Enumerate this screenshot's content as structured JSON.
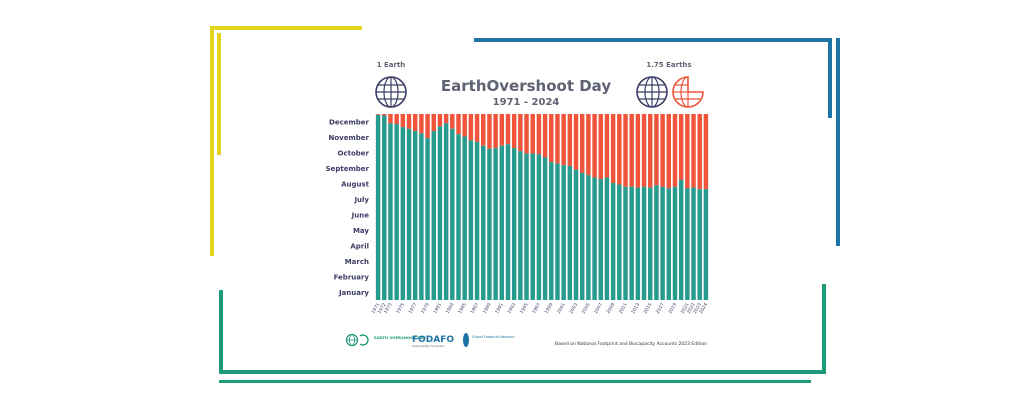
{
  "colors": {
    "accent_yellow": "#e3d41b",
    "accent_blue": "#1d73a3",
    "accent_green": "#1d9a7a",
    "bar_green": "#279b8d",
    "bar_red": "#f0553b",
    "navy": "#3b3d66",
    "title_gray": "#5e6272"
  },
  "header": {
    "title": "EarthOvershoot Day",
    "subtitle": "1971 - 2024",
    "left_label": "1 Earth",
    "right_label": "1.75 Earths"
  },
  "icons": [
    "globe-icon",
    "globe-icon",
    "partial-globe-icon",
    "earth-overshoot-day-logo",
    "fodafo-logo",
    "global-footprint-network-logo"
  ],
  "footer": {
    "logo1_text": "EARTH OVERSHOOT DAY",
    "logo2_text": "FODAFO",
    "logo2_sub": "Sustainability Foundation",
    "logo3_text": "Global Footprint Network",
    "source": "Based on National Footprint and Biocapacity Accounts 2023 Edition"
  },
  "chart_data": {
    "type": "bar",
    "title": "EarthOvershoot Day",
    "subtitle": "1971 - 2024",
    "y_tick_labels": [
      "January",
      "February",
      "March",
      "April",
      "May",
      "June",
      "July",
      "August",
      "September",
      "October",
      "November",
      "December"
    ],
    "x_tick_labels": [
      "1971",
      "1972",
      "1973",
      "1975",
      "1977",
      "1979",
      "1981",
      "1983",
      "1985",
      "1987",
      "1989",
      "1991",
      "1993",
      "1995",
      "1997",
      "1999",
      "2001",
      "2003",
      "2005",
      "2007",
      "2009",
      "2011",
      "2013",
      "2015",
      "2017",
      "2019",
      "2021",
      "2022",
      "2023",
      "2024"
    ],
    "ylim": [
      0,
      12
    ],
    "stacked_series": [
      {
        "name": "green",
        "color": "#279b8d"
      },
      {
        "name": "red",
        "color": "#f0553b"
      }
    ],
    "categories": [
      "1971",
      "1972",
      "1973",
      "1974",
      "1975",
      "1976",
      "1977",
      "1978",
      "1979",
      "1980",
      "1981",
      "1982",
      "1983",
      "1984",
      "1985",
      "1986",
      "1987",
      "1988",
      "1989",
      "1990",
      "1991",
      "1992",
      "1993",
      "1994",
      "1995",
      "1996",
      "1997",
      "1998",
      "1999",
      "2000",
      "2001",
      "2002",
      "2003",
      "2004",
      "2005",
      "2006",
      "2007",
      "2008",
      "2009",
      "2010",
      "2011",
      "2012",
      "2013",
      "2014",
      "2015",
      "2016",
      "2017",
      "2018",
      "2019",
      "2020",
      "2021",
      "2022",
      "2023",
      "2024"
    ],
    "values": [
      11.95,
      11.9,
      11.4,
      11.35,
      11.15,
      11.05,
      10.9,
      10.75,
      10.45,
      10.9,
      11.2,
      11.4,
      11.05,
      10.7,
      10.55,
      10.3,
      10.2,
      9.95,
      9.75,
      9.8,
      9.95,
      10.05,
      9.8,
      9.6,
      9.45,
      9.45,
      9.4,
      9.2,
      8.9,
      8.8,
      8.7,
      8.65,
      8.4,
      8.2,
      8.05,
      7.9,
      7.8,
      7.9,
      7.55,
      7.45,
      7.3,
      7.3,
      7.25,
      7.3,
      7.25,
      7.4,
      7.3,
      7.2,
      7.3,
      7.75,
      7.2,
      7.25,
      7.15,
      7.15
    ]
  }
}
